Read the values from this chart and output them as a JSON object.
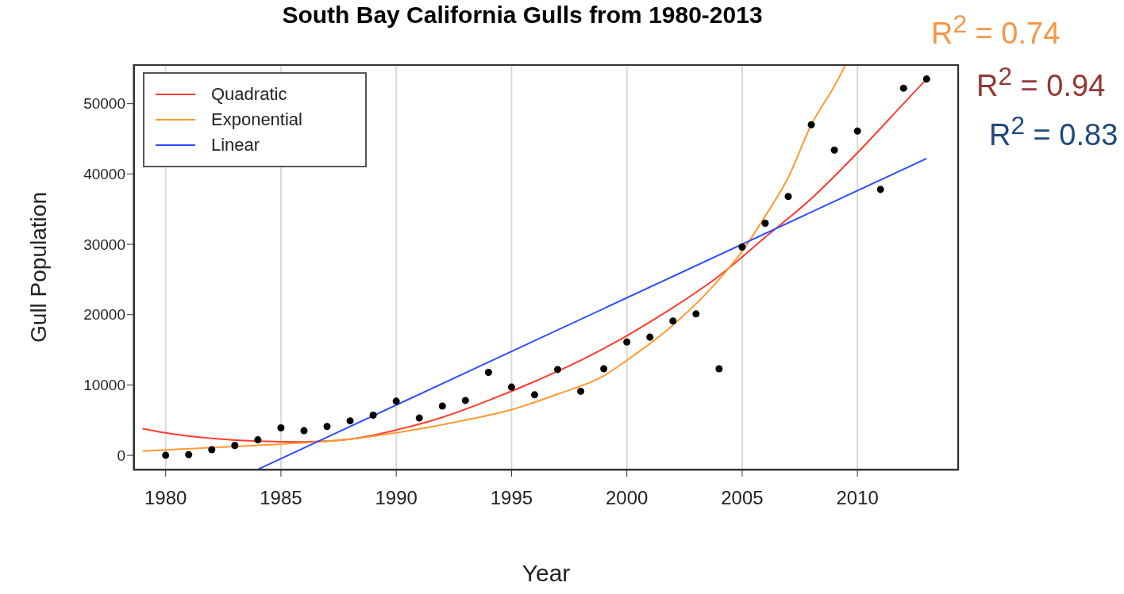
{
  "chart_data": {
    "type": "scatter",
    "title": "South Bay California Gulls from 1980-2013",
    "xlabel": "Year",
    "ylabel": "Gull Population",
    "xlim": [
      1978.6,
      2014.4
    ],
    "ylim": [
      -2130,
      55600
    ],
    "xticks": [
      1980,
      1985,
      1990,
      1995,
      2000,
      2005,
      2010
    ],
    "yticks": [
      0,
      10000,
      20000,
      30000,
      40000,
      50000
    ],
    "grid": "x",
    "legend": "top left",
    "marker": "circle",
    "series": [
      {
        "color": "#000000",
        "x": [
          1980,
          1981,
          1982,
          1983,
          1984,
          1985,
          1986,
          1987,
          1988,
          1989,
          1990,
          1991,
          1992,
          1993,
          1994,
          1995,
          1996,
          1997,
          1998,
          1999,
          2000,
          2001,
          2002,
          2003,
          2004,
          2005,
          2006,
          2007,
          2008,
          2009,
          2010,
          2011,
          2012,
          2013
        ],
        "values": [
          0,
          100,
          800,
          1400,
          2200,
          3900,
          3500,
          4100,
          4900,
          5700,
          7700,
          5300,
          7000,
          7800,
          11800,
          9700,
          8600,
          12200,
          9100,
          12300,
          16100,
          16800,
          19100,
          20100,
          12300,
          29600,
          33000,
          36800,
          47000,
          43400,
          46100,
          37800,
          52200,
          53500
        ]
      },
      {
        "type": "line",
        "name": "Quadratic",
        "color": "#ff3b2f",
        "marker": "none",
        "x": [
          1979,
          1980,
          1982,
          1984,
          1986,
          1988,
          1990,
          1992,
          1994,
          1996,
          1998,
          2000,
          2002,
          2004,
          2006,
          2008,
          2010,
          2012,
          2013
        ],
        "values": [
          3800,
          3200,
          2400,
          2000,
          1900,
          2300,
          3600,
          5400,
          7800,
          10500,
          13500,
          17000,
          21000,
          25500,
          31000,
          36500,
          43000,
          50000,
          53500
        ]
      },
      {
        "type": "line",
        "name": "Exponential",
        "color": "#ff9a2e",
        "marker": "none",
        "x": [
          1979,
          1982,
          1985,
          1988,
          1990,
          1993,
          1995,
          1997,
          1999,
          2000,
          2002,
          2004,
          2005,
          2006,
          2007,
          2008,
          2009,
          2009.5
        ],
        "values": [
          600,
          1100,
          1600,
          2300,
          3200,
          5000,
          6500,
          8700,
          11300,
          13500,
          18500,
          25000,
          29000,
          34000,
          39500,
          47000,
          52500,
          55600
        ]
      },
      {
        "type": "line",
        "name": "Linear",
        "color": "#2f4bff",
        "marker": "none",
        "x": [
          1984,
          2013
        ],
        "values": [
          -2000,
          42200
        ]
      }
    ],
    "annotations": [
      "R$^{2}$ = 0.74",
      "R$^{2}$ = 0.94",
      "R$^{2}$ = 0.83"
    ]
  }
}
